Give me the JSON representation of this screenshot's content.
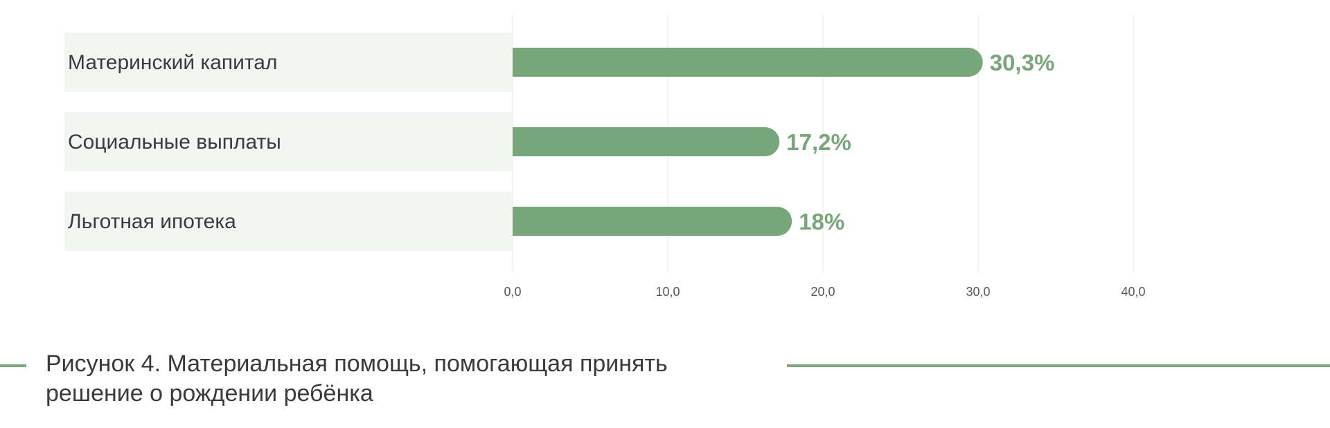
{
  "colors": {
    "bar": "#77a67a",
    "value_label": "#77a67a",
    "category_bg": "#f2f6f2",
    "grid": "#e6e6e6",
    "rule": "#77a67a"
  },
  "chart_data": {
    "type": "bar",
    "orientation": "horizontal",
    "title": "",
    "xlabel": "",
    "ylabel": "",
    "categories": [
      "Материнский капитал",
      "Социальные выплаты",
      "Льготная ипотека"
    ],
    "values": [
      30.3,
      17.2,
      18
    ],
    "value_labels": [
      "30,3%",
      "17,2%",
      "18%"
    ],
    "xlim": [
      0,
      40
    ],
    "ticks": [
      0,
      10,
      20,
      30,
      40
    ],
    "tick_labels": [
      "0,0",
      "10,0",
      "20,0",
      "30,0",
      "40,0"
    ],
    "grid": true,
    "legend": "none"
  },
  "caption": {
    "line1": "Рисунок 4. Материальная помощь, помогающая принять",
    "line2": "решение о рождении ребёнка"
  }
}
